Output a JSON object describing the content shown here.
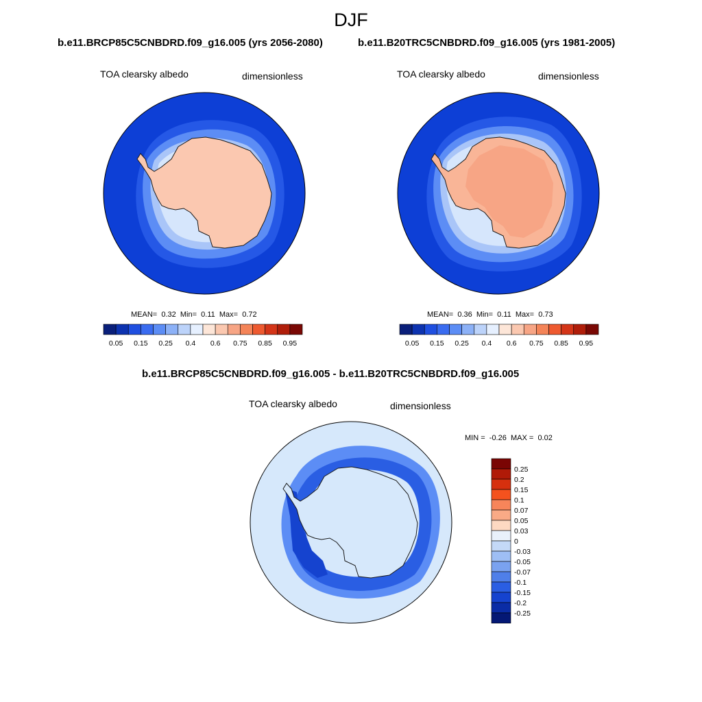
{
  "figure": {
    "season": "DJF",
    "left_panel": {
      "case_title": "b.e11.BRCP85C5CNBDRD.f09_g16.005 (yrs 2056-2080)",
      "variable": "TOA clearsky albedo",
      "units": "dimensionless",
      "mean_label": "MEAN=",
      "mean": "0.32",
      "min_label": "Min=",
      "min": "0.11",
      "max_label": "Max=",
      "max": "0.72"
    },
    "right_panel": {
      "case_title": "b.e11.B20TRC5CNBDRD.f09_g16.005 (yrs 1981-2005)",
      "variable": "TOA clearsky albedo",
      "units": "dimensionless",
      "mean_label": "MEAN=",
      "mean": "0.36",
      "min_label": "Min=",
      "min": "0.11",
      "max_label": "Max=",
      "max": "0.73"
    },
    "diff_panel": {
      "title": "b.e11.BRCP85C5CNBDRD.f09_g16.005 - b.e11.B20TRC5CNBDRD.f09_g16.005",
      "variable": "TOA clearsky albedo",
      "units": "dimensionless",
      "min_label": "MIN =",
      "min": "-0.26",
      "max_label": "MAX =",
      "max": "0.02"
    },
    "abs_colorbar": {
      "colors": [
        "#0a1f7a",
        "#0d33b0",
        "#1f4fe0",
        "#3a6cf0",
        "#5c8df5",
        "#8cb1f7",
        "#bcd3fa",
        "#e6f0ff",
        "#fde6d8",
        "#fbc8b0",
        "#f7a585",
        "#f48458",
        "#ee5a30",
        "#d43518",
        "#b01e0a",
        "#7a0804"
      ],
      "tick_labels": [
        "0.05",
        "0.15",
        "0.25",
        "0.4",
        "0.6",
        "0.75",
        "0.85",
        "0.95"
      ],
      "tick_boundaries": [
        1,
        3,
        5,
        7,
        9,
        11,
        13,
        15
      ]
    },
    "diff_colorbar": {
      "colors": [
        "#7a0504",
        "#b01a08",
        "#d6300e",
        "#f4521e",
        "#f7855a",
        "#f9aa86",
        "#fdd9c2",
        "#e9f1fb",
        "#c4d9f7",
        "#9ebef4",
        "#7aa2f0",
        "#4f7fe9",
        "#2a5ee3",
        "#1543cf",
        "#0a2ca6",
        "#041875"
      ],
      "tick_labels": [
        "0.25",
        "0.2",
        "0.15",
        "0.1",
        "0.07",
        "0.05",
        "0.03",
        "0",
        "-0.03",
        "-0.05",
        "-0.07",
        "-0.1",
        "-0.15",
        "-0.2",
        "-0.25"
      ]
    },
    "map_colors": {
      "ocean_deep": "#0d3fd6",
      "ocean_mid": "#2558e6",
      "ocean_light1": "#5c8df5",
      "ocean_light2": "#a9c5f8",
      "ocean_light3": "#d6e6fc",
      "land_left": "#fbc8b0",
      "land_right_outer": "#f9b597",
      "land_right_inner": "#f7a585",
      "diff_background": "#d6e8fb",
      "diff_band1": "#5c8df5",
      "diff_band2": "#2a5ee3",
      "diff_band3": "#1543cf",
      "coast": "#1a1a1a"
    }
  }
}
